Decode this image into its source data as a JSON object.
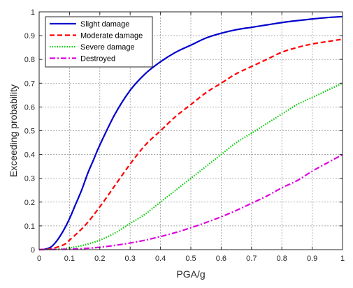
{
  "chart_data": {
    "type": "line",
    "xlabel": "PGA/g",
    "ylabel": "Exceeding probability",
    "xlim": [
      0,
      1
    ],
    "ylim": [
      0,
      1
    ],
    "xticks": [
      "0",
      "0.1",
      "0.2",
      "0.3",
      "0.4",
      "0.5",
      "0.6",
      "0.7",
      "0.8",
      "0.9",
      "1"
    ],
    "yticks": [
      "0",
      "0.1",
      "0.2",
      "0.3",
      "0.4",
      "0.5",
      "0.6",
      "0.7",
      "0.8",
      "0.9",
      "1"
    ],
    "grid": true,
    "legend_position": "top-left",
    "series": [
      {
        "name": "Slight damage",
        "color": "#0000cc",
        "style": "solid",
        "x": [
          0,
          0.02,
          0.04,
          0.06,
          0.08,
          0.1,
          0.12,
          0.14,
          0.16,
          0.18,
          0.2,
          0.25,
          0.3,
          0.35,
          0.4,
          0.45,
          0.5,
          0.55,
          0.6,
          0.65,
          0.7,
          0.75,
          0.8,
          0.85,
          0.9,
          0.95,
          1.0
        ],
        "y": [
          0,
          0.002,
          0.012,
          0.04,
          0.08,
          0.13,
          0.19,
          0.25,
          0.32,
          0.38,
          0.44,
          0.57,
          0.67,
          0.74,
          0.79,
          0.83,
          0.86,
          0.89,
          0.91,
          0.925,
          0.935,
          0.945,
          0.955,
          0.963,
          0.97,
          0.976,
          0.98
        ]
      },
      {
        "name": "Moderate damage",
        "color": "#ff0000",
        "style": "dashed",
        "x": [
          0,
          0.04,
          0.08,
          0.1,
          0.15,
          0.2,
          0.25,
          0.3,
          0.35,
          0.4,
          0.45,
          0.5,
          0.55,
          0.6,
          0.65,
          0.7,
          0.75,
          0.8,
          0.85,
          0.9,
          0.95,
          1.0
        ],
        "y": [
          0,
          0.004,
          0.02,
          0.04,
          0.1,
          0.18,
          0.27,
          0.36,
          0.44,
          0.5,
          0.56,
          0.61,
          0.66,
          0.7,
          0.74,
          0.77,
          0.8,
          0.83,
          0.85,
          0.865,
          0.875,
          0.885
        ]
      },
      {
        "name": "Severe damage",
        "color": "#00cc00",
        "style": "dotted",
        "x": [
          0,
          0.05,
          0.1,
          0.15,
          0.2,
          0.25,
          0.3,
          0.35,
          0.4,
          0.45,
          0.5,
          0.55,
          0.6,
          0.65,
          0.7,
          0.75,
          0.8,
          0.85,
          0.9,
          0.95,
          1.0
        ],
        "y": [
          0,
          0.001,
          0.007,
          0.02,
          0.04,
          0.07,
          0.11,
          0.15,
          0.2,
          0.25,
          0.3,
          0.35,
          0.4,
          0.45,
          0.49,
          0.53,
          0.57,
          0.61,
          0.64,
          0.67,
          0.7
        ]
      },
      {
        "name": "Destroyed",
        "color": "#dd00dd",
        "style": "dashdot",
        "x": [
          0,
          0.1,
          0.15,
          0.2,
          0.25,
          0.3,
          0.35,
          0.4,
          0.45,
          0.5,
          0.55,
          0.6,
          0.65,
          0.7,
          0.75,
          0.8,
          0.85,
          0.9,
          0.95,
          1.0
        ],
        "y": [
          0,
          0.002,
          0.005,
          0.01,
          0.018,
          0.028,
          0.04,
          0.055,
          0.072,
          0.092,
          0.114,
          0.138,
          0.165,
          0.195,
          0.225,
          0.26,
          0.29,
          0.33,
          0.365,
          0.4
        ]
      }
    ]
  }
}
